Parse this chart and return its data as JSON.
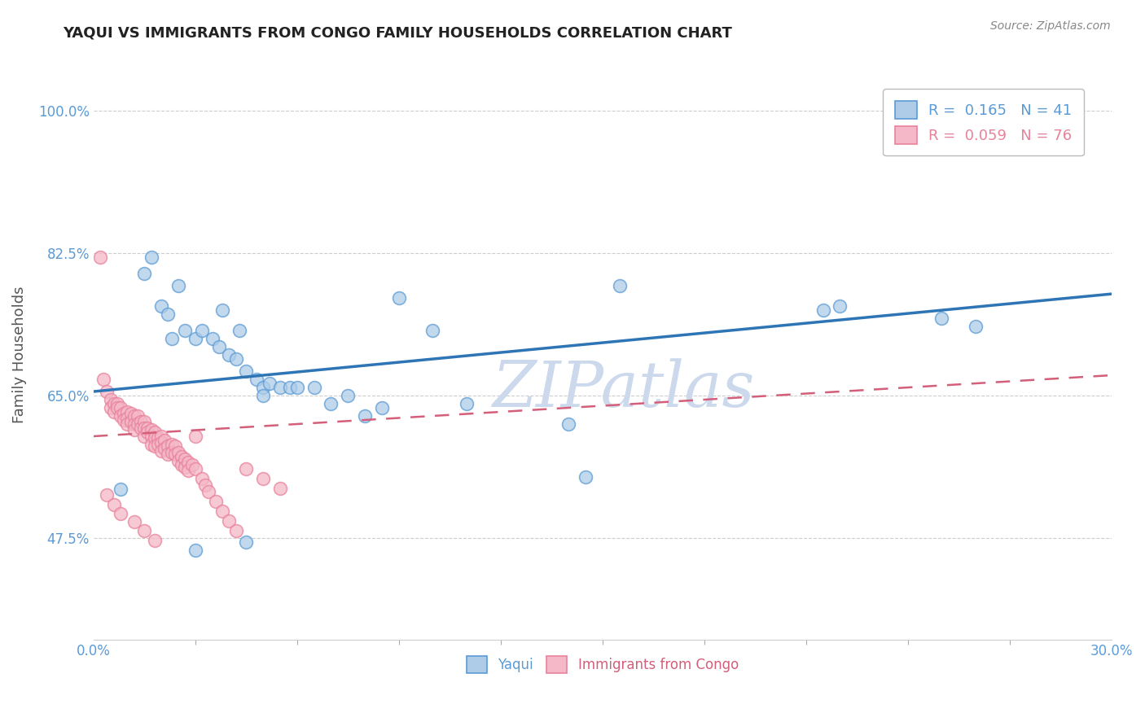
{
  "title": "YAQUI VS IMMIGRANTS FROM CONGO FAMILY HOUSEHOLDS CORRELATION CHART",
  "source": "Source: ZipAtlas.com",
  "ylabel": "Family Households",
  "xlim": [
    0.0,
    0.3
  ],
  "ylim": [
    0.35,
    1.05
  ],
  "yticks": [
    0.475,
    0.65,
    0.825,
    1.0
  ],
  "ytick_labels": [
    "47.5%",
    "65.0%",
    "82.5%",
    "100.0%"
  ],
  "xticks": [
    0.0,
    0.3
  ],
  "xtick_labels": [
    "0.0%",
    "30.0%"
  ],
  "legend_entries": [
    {
      "label": "R =  0.165   N = 41",
      "color": "#5b9bd5"
    },
    {
      "label": "R =  0.059   N = 76",
      "color": "#e8829a"
    }
  ],
  "series_yaqui": {
    "color": "#aecce8",
    "edge_color": "#5b9bd5",
    "x": [
      0.008,
      0.015,
      0.017,
      0.02,
      0.022,
      0.023,
      0.025,
      0.027,
      0.03,
      0.032,
      0.035,
      0.037,
      0.038,
      0.04,
      0.042,
      0.043,
      0.045,
      0.048,
      0.05,
      0.05,
      0.052,
      0.055,
      0.058,
      0.06,
      0.065,
      0.07,
      0.075,
      0.08,
      0.085,
      0.09,
      0.1,
      0.11,
      0.14,
      0.145,
      0.155,
      0.215,
      0.22,
      0.25,
      0.26,
      0.03,
      0.045
    ],
    "y": [
      0.535,
      0.8,
      0.82,
      0.76,
      0.75,
      0.72,
      0.785,
      0.73,
      0.72,
      0.73,
      0.72,
      0.71,
      0.755,
      0.7,
      0.695,
      0.73,
      0.68,
      0.67,
      0.66,
      0.65,
      0.665,
      0.66,
      0.66,
      0.66,
      0.66,
      0.64,
      0.65,
      0.625,
      0.635,
      0.77,
      0.73,
      0.64,
      0.615,
      0.55,
      0.785,
      0.755,
      0.76,
      0.745,
      0.735,
      0.46,
      0.47
    ]
  },
  "series_congo": {
    "color": "#f4b8c8",
    "edge_color": "#e8829a",
    "x": [
      0.002,
      0.003,
      0.004,
      0.005,
      0.005,
      0.006,
      0.006,
      0.007,
      0.007,
      0.008,
      0.008,
      0.009,
      0.009,
      0.01,
      0.01,
      0.01,
      0.011,
      0.011,
      0.012,
      0.012,
      0.012,
      0.013,
      0.013,
      0.014,
      0.014,
      0.015,
      0.015,
      0.015,
      0.016,
      0.016,
      0.017,
      0.017,
      0.017,
      0.018,
      0.018,
      0.018,
      0.019,
      0.019,
      0.02,
      0.02,
      0.02,
      0.021,
      0.021,
      0.022,
      0.022,
      0.023,
      0.023,
      0.024,
      0.024,
      0.025,
      0.025,
      0.026,
      0.026,
      0.027,
      0.027,
      0.028,
      0.028,
      0.029,
      0.03,
      0.03,
      0.032,
      0.033,
      0.034,
      0.036,
      0.038,
      0.04,
      0.042,
      0.045,
      0.05,
      0.055,
      0.004,
      0.006,
      0.008,
      0.012,
      0.015,
      0.018
    ],
    "y": [
      0.82,
      0.67,
      0.655,
      0.645,
      0.635,
      0.64,
      0.63,
      0.64,
      0.635,
      0.635,
      0.625,
      0.628,
      0.62,
      0.63,
      0.622,
      0.615,
      0.628,
      0.618,
      0.625,
      0.615,
      0.608,
      0.625,
      0.615,
      0.618,
      0.61,
      0.618,
      0.61,
      0.6,
      0.61,
      0.605,
      0.608,
      0.6,
      0.59,
      0.605,
      0.598,
      0.588,
      0.598,
      0.59,
      0.6,
      0.592,
      0.582,
      0.595,
      0.585,
      0.588,
      0.578,
      0.59,
      0.58,
      0.588,
      0.578,
      0.58,
      0.57,
      0.575,
      0.565,
      0.572,
      0.562,
      0.568,
      0.558,
      0.565,
      0.6,
      0.56,
      0.548,
      0.54,
      0.532,
      0.52,
      0.508,
      0.496,
      0.484,
      0.56,
      0.548,
      0.536,
      0.528,
      0.516,
      0.505,
      0.495,
      0.484,
      0.472
    ]
  },
  "yaqui_line": {
    "x0": 0.0,
    "y0": 0.655,
    "x1": 0.3,
    "y1": 0.775
  },
  "congo_line": {
    "x0": 0.0,
    "y0": 0.6,
    "x1": 0.3,
    "y1": 0.675
  },
  "watermark": "ZIPatlas",
  "watermark_color": "#ccd9ec",
  "background_color": "#ffffff",
  "grid_color": "#c8c8c8",
  "title_color": "#222222",
  "axis_label_color": "#555555",
  "tick_color": "#5b9bd5",
  "source_color": "#888888"
}
